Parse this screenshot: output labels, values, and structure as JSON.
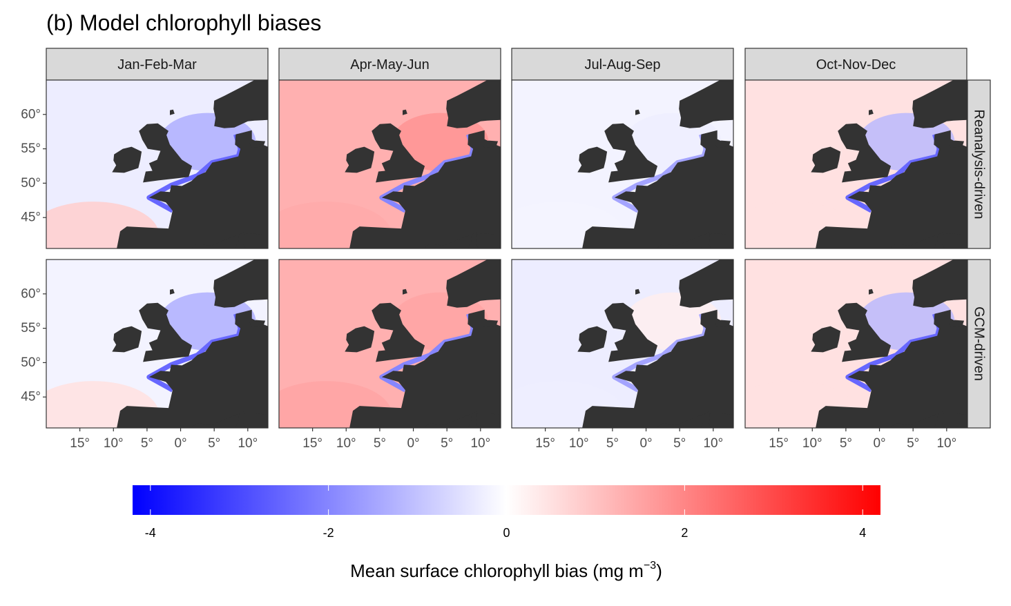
{
  "title": "(b) Model chlorophyll biases",
  "chart_data": {
    "type": "heatmap",
    "title": "(b) Model chlorophyll biases",
    "col_facets": [
      "Jan-Feb-Mar",
      "Apr-May-Jun",
      "Jul-Aug-Sep",
      "Oct-Nov-Dec"
    ],
    "row_facets": [
      "Reanalysis-driven",
      "GCM-driven"
    ],
    "x_axis": {
      "ticks": [
        -15,
        -10,
        -5,
        0,
        5,
        10
      ],
      "tick_labels": [
        "15°",
        "10°",
        "5°",
        "0°",
        "5°",
        "10°"
      ],
      "range": [
        -20,
        13
      ]
    },
    "y_axis": {
      "ticks": [
        45,
        50,
        55,
        60
      ],
      "tick_labels": [
        "45°",
        "50°",
        "55°",
        "60°"
      ],
      "range": [
        40.5,
        65
      ]
    },
    "colorbar": {
      "title_main": "Mean surface chlorophyll bias (mg m",
      "title_sup": "−3",
      "title_end": ")",
      "ticks": [
        -4,
        -2,
        0,
        2,
        4
      ],
      "tick_labels": [
        "-4",
        "-2",
        "0",
        "2",
        "4"
      ],
      "range": [
        -4.2,
        4.2
      ],
      "colors": {
        "low": "#0000ff",
        "mid": "#ffffff",
        "high": "#ff0000"
      }
    },
    "panels": [
      {
        "season": "Jan-Feb-Mar",
        "run": "Reanalysis-driven",
        "open_ocean_bias": -0.3,
        "southwest_bias": 0.8,
        "north_sea_bias": -1.4,
        "coastal_bias": -2.5
      },
      {
        "season": "Apr-May-Jun",
        "run": "Reanalysis-driven",
        "open_ocean_bias": 1.3,
        "southwest_bias": 1.4,
        "north_sea_bias": 1.8,
        "coastal_bias": -2.0
      },
      {
        "season": "Jul-Aug-Sep",
        "run": "Reanalysis-driven",
        "open_ocean_bias": -0.2,
        "southwest_bias": -0.2,
        "north_sea_bias": -0.3,
        "coastal_bias": -1.5
      },
      {
        "season": "Oct-Nov-Dec",
        "run": "Reanalysis-driven",
        "open_ocean_bias": 0.5,
        "southwest_bias": 0.5,
        "north_sea_bias": -1.2,
        "coastal_bias": -2.5
      },
      {
        "season": "Jan-Feb-Mar",
        "run": "GCM-driven",
        "open_ocean_bias": -0.2,
        "southwest_bias": 0.5,
        "north_sea_bias": -1.4,
        "coastal_bias": -2.5
      },
      {
        "season": "Apr-May-Jun",
        "run": "GCM-driven",
        "open_ocean_bias": 1.3,
        "southwest_bias": 1.5,
        "north_sea_bias": 1.5,
        "coastal_bias": -2.0
      },
      {
        "season": "Jul-Aug-Sep",
        "run": "GCM-driven",
        "open_ocean_bias": -0.3,
        "southwest_bias": -0.3,
        "north_sea_bias": 0.3,
        "coastal_bias": -1.5
      },
      {
        "season": "Oct-Nov-Dec",
        "run": "GCM-driven",
        "open_ocean_bias": 0.5,
        "southwest_bias": 0.5,
        "north_sea_bias": -1.2,
        "coastal_bias": -2.5
      }
    ],
    "land_color": "#333333"
  }
}
